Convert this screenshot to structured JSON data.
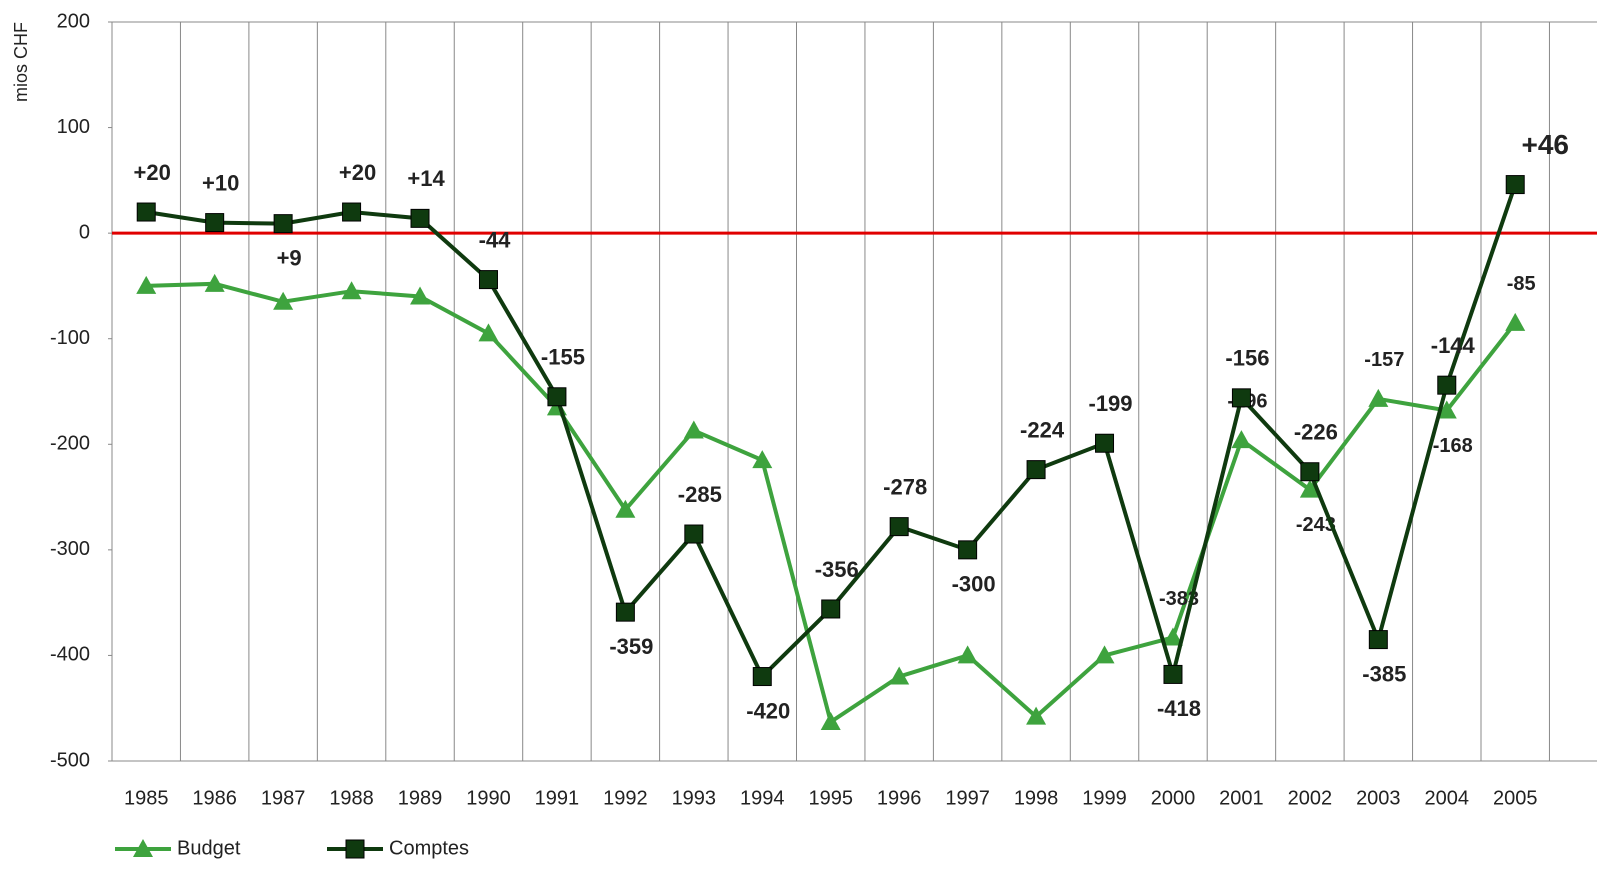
{
  "chart_data": {
    "type": "line",
    "y_label": "mios CHF",
    "categories": [
      "1985",
      "1986",
      "1987",
      "1988",
      "1989",
      "1990",
      "1991",
      "1992",
      "1993",
      "1994",
      "1995",
      "1996",
      "1997",
      "1998",
      "1999",
      "2000",
      "2001",
      "2002",
      "2003",
      "2004",
      "2005"
    ],
    "series": [
      {
        "name": "Budget",
        "color": "#3ea33e",
        "marker": "triangle",
        "values": [
          -50,
          -48,
          -65,
          -55,
          -60,
          -95,
          -165,
          -262,
          -187,
          -215,
          -463,
          -420,
          -400,
          -458,
          -400,
          -383,
          -196,
          -243,
          -157,
          -168,
          -85
        ],
        "value_labels": [
          null,
          null,
          null,
          null,
          null,
          null,
          null,
          null,
          null,
          null,
          null,
          null,
          null,
          null,
          null,
          "-383",
          "-196",
          "-243",
          "-157",
          "-168",
          "-85"
        ]
      },
      {
        "name": "Comptes",
        "color": "#0f3a0f",
        "marker": "square",
        "values": [
          20,
          10,
          9,
          20,
          14,
          -44,
          -155,
          -359,
          -285,
          -420,
          -356,
          -278,
          -300,
          -224,
          -199,
          -418,
          -156,
          -226,
          -385,
          -144,
          46
        ],
        "value_labels": [
          "+20",
          "+10",
          "+9",
          "+20",
          "+14",
          "-44",
          "-155",
          "-359",
          "-285",
          "-420",
          "-356",
          "-278",
          "-300",
          "-224",
          "-199",
          "-418",
          "-156",
          "-226",
          "-385",
          "-144",
          "+46"
        ]
      }
    ],
    "ylim": [
      -500,
      200
    ],
    "yticks": [
      -500,
      -400,
      -300,
      -200,
      -100,
      0,
      100,
      200
    ],
    "reference_line": {
      "value": 0,
      "color": "#e00000"
    },
    "grid": "vertical",
    "legend": "bottom-left"
  }
}
